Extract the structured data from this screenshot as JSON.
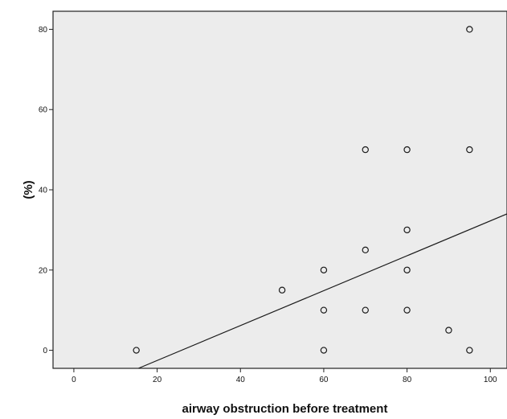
{
  "chart_data": {
    "type": "scatter",
    "title": "",
    "xlabel": "airway obstruction before treatment",
    "ylabel": "(%)",
    "xlim": [
      -5,
      104
    ],
    "ylim": [
      -4.5,
      84.5
    ],
    "xticks": [
      0,
      20,
      40,
      60,
      80,
      100
    ],
    "yticks": [
      0,
      20,
      40,
      60,
      80
    ],
    "grid": false,
    "legend": "none",
    "points": [
      {
        "x": 15,
        "y": 0
      },
      {
        "x": 50,
        "y": 15
      },
      {
        "x": 60,
        "y": 20
      },
      {
        "x": 60,
        "y": 10
      },
      {
        "x": 60,
        "y": 0
      },
      {
        "x": 70,
        "y": 50
      },
      {
        "x": 70,
        "y": 25
      },
      {
        "x": 70,
        "y": 10
      },
      {
        "x": 80,
        "y": 50
      },
      {
        "x": 80,
        "y": 30
      },
      {
        "x": 80,
        "y": 20
      },
      {
        "x": 80,
        "y": 10
      },
      {
        "x": 90,
        "y": 5
      },
      {
        "x": 95,
        "y": 80
      },
      {
        "x": 95,
        "y": 50
      },
      {
        "x": 95,
        "y": 0
      }
    ],
    "fit_line": {
      "x1": 15.5,
      "y1": -4.5,
      "x2": 104,
      "y2": 34
    },
    "colors": {
      "plot_background": "#ececec",
      "marker": "#1a1a1a",
      "line": "#1a1a1a"
    }
  }
}
